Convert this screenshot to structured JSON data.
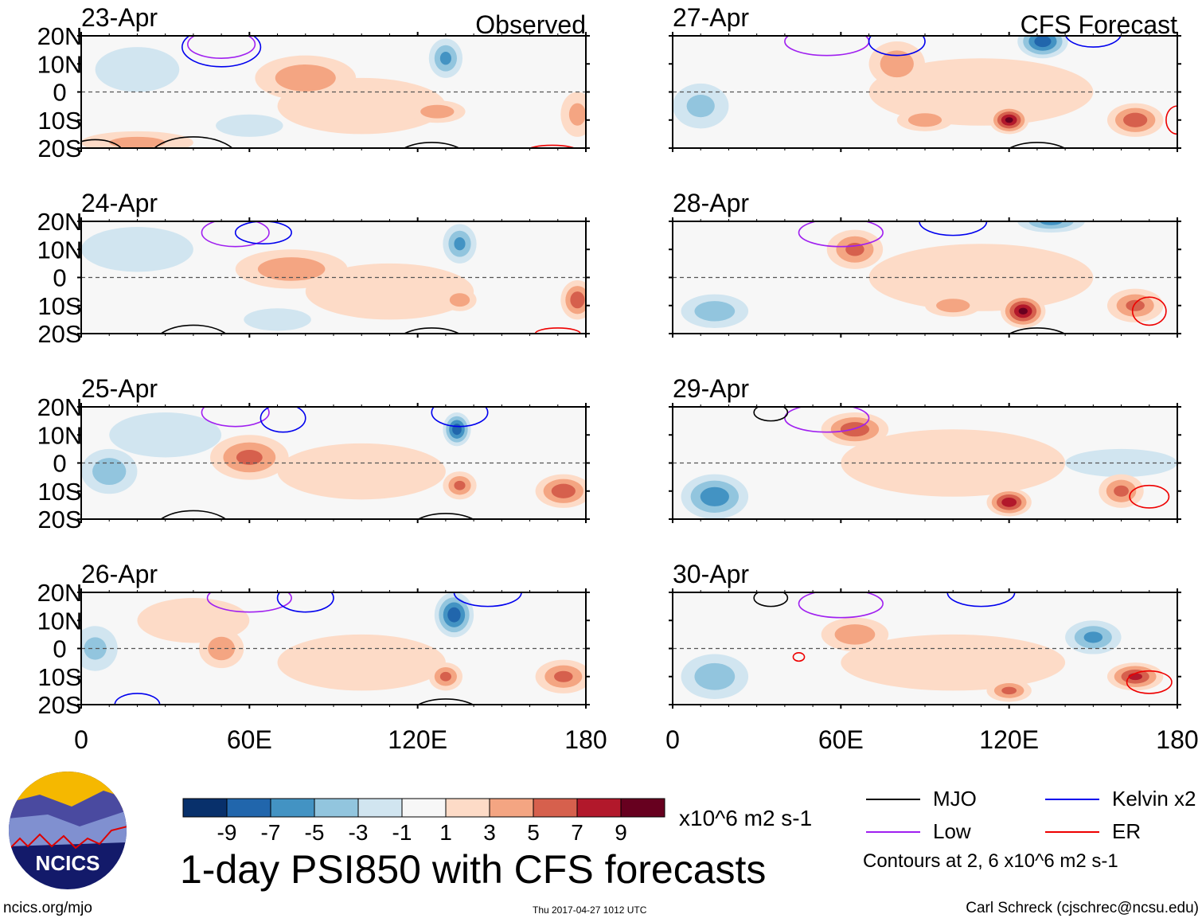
{
  "chart_data": {
    "type": "heatmap",
    "title": "1-day PSI850 with CFS forecasts",
    "units": "x10^6 m2 s-1",
    "xlim": [
      0,
      180
    ],
    "ylim": [
      -20,
      20
    ],
    "x_ticks": [
      "0",
      "60E",
      "120E",
      "180"
    ],
    "x_tick_values": [
      0,
      60,
      120,
      180
    ],
    "y_ticks": [
      "20N",
      "10N",
      "0",
      "10S",
      "20S"
    ],
    "y_tick_values": [
      20,
      10,
      0,
      -10,
      -20
    ],
    "colorbar": {
      "labels": [
        "-9",
        "-7",
        "-5",
        "-3",
        "-1",
        "1",
        "3",
        "5",
        "7",
        "9"
      ],
      "edges": [
        -9,
        -7,
        -5,
        -3,
        -1,
        1,
        3,
        5,
        7,
        9
      ],
      "colors": [
        "#08306b",
        "#2166ac",
        "#4393c3",
        "#92c5de",
        "#d1e5f0",
        "#f7f7f7",
        "#fddbc7",
        "#f4a582",
        "#d6604d",
        "#b2182b",
        "#67001f"
      ]
    },
    "legend": {
      "items": [
        {
          "name": "MJO",
          "color": "#000000"
        },
        {
          "name": "Kelvin x2",
          "color": "#0000ee"
        },
        {
          "name": "Low",
          "color": "#a020f0"
        },
        {
          "name": "ER",
          "color": "#ee0000"
        }
      ],
      "note": "Contours at 2, 6 x10^6 m2 s-1"
    },
    "panels": [
      {
        "date": "23-Apr",
        "tag": "Observed",
        "column": "left",
        "row": 0,
        "features": [
          [
            80,
            5,
            4,
            18,
            8
          ],
          [
            130,
            12,
            -5,
            6,
            7
          ],
          [
            127,
            -7,
            4,
            10,
            4
          ],
          [
            60,
            -12,
            -2,
            12,
            4
          ],
          [
            20,
            8,
            -2,
            15,
            8
          ],
          [
            20,
            -18,
            3,
            20,
            4
          ],
          [
            100,
            -5,
            2,
            30,
            10
          ],
          [
            177,
            -8,
            3,
            6,
            8
          ]
        ],
        "contours": [
          [
            50,
            17,
            12,
            5,
            "#a020f0"
          ],
          [
            50,
            16,
            14,
            7,
            "#0000ee"
          ],
          [
            5,
            -22,
            10,
            5,
            "#000000"
          ],
          [
            40,
            -24,
            16,
            8,
            "#000000"
          ],
          [
            125,
            -24,
            13,
            6,
            "#000000"
          ],
          [
            168,
            -21,
            9,
            2,
            "#ee0000"
          ]
        ]
      },
      {
        "date": "24-Apr",
        "tag": "",
        "column": "left",
        "row": 1,
        "features": [
          [
            75,
            3,
            4,
            20,
            7
          ],
          [
            135,
            12,
            -5,
            6,
            7
          ],
          [
            20,
            10,
            -2,
            20,
            8
          ],
          [
            70,
            -15,
            -2,
            12,
            4
          ],
          [
            177,
            -8,
            6,
            6,
            7
          ],
          [
            135,
            -8,
            4,
            6,
            4
          ],
          [
            110,
            -5,
            2,
            30,
            10
          ]
        ],
        "contours": [
          [
            55,
            16,
            12,
            5,
            "#a020f0"
          ],
          [
            65,
            16,
            10,
            4,
            "#0000ee"
          ],
          [
            40,
            -24,
            14,
            7,
            "#000000"
          ],
          [
            125,
            -24,
            13,
            6,
            "#000000"
          ],
          [
            170,
            -20,
            8,
            2,
            "#ee0000"
          ]
        ]
      },
      {
        "date": "25-Apr",
        "tag": "",
        "column": "left",
        "row": 2,
        "features": [
          [
            60,
            2,
            5,
            14,
            8
          ],
          [
            134,
            12,
            -8,
            5,
            6
          ],
          [
            135,
            -8,
            5,
            6,
            5
          ],
          [
            172,
            -10,
            6,
            10,
            6
          ],
          [
            10,
            -3,
            -4,
            10,
            8
          ],
          [
            100,
            -3,
            2,
            30,
            10
          ],
          [
            30,
            10,
            -2,
            20,
            8
          ]
        ],
        "contours": [
          [
            55,
            18,
            12,
            5,
            "#a020f0"
          ],
          [
            72,
            16,
            8,
            5,
            "#0000ee"
          ],
          [
            135,
            18,
            10,
            5,
            "#0000ee"
          ],
          [
            40,
            -24,
            14,
            7,
            "#000000"
          ],
          [
            130,
            -24,
            13,
            6,
            "#000000"
          ]
        ]
      },
      {
        "date": "26-Apr",
        "tag": "",
        "column": "left",
        "row": 3,
        "features": [
          [
            50,
            0,
            4,
            8,
            7
          ],
          [
            133,
            12,
            -8,
            7,
            8
          ],
          [
            130,
            -10,
            5,
            6,
            5
          ],
          [
            172,
            -10,
            5,
            10,
            6
          ],
          [
            5,
            0,
            -3,
            8,
            8
          ],
          [
            100,
            -5,
            2,
            30,
            10
          ],
          [
            40,
            10,
            2,
            20,
            8
          ]
        ],
        "contours": [
          [
            60,
            18,
            15,
            5,
            "#a020f0"
          ],
          [
            80,
            18,
            10,
            5,
            "#0000ee"
          ],
          [
            145,
            20,
            12,
            5,
            "#0000ee"
          ],
          [
            20,
            -20,
            8,
            4,
            "#0000ee"
          ],
          [
            130,
            -24,
            13,
            6,
            "#000000"
          ]
        ]
      },
      {
        "date": "27-Apr",
        "tag": "CFS Forecast",
        "column": "right",
        "row": 0,
        "features": [
          [
            132,
            18,
            -8,
            9,
            6
          ],
          [
            120,
            -10,
            9,
            7,
            5
          ],
          [
            90,
            -10,
            4,
            10,
            4
          ],
          [
            80,
            10,
            4,
            10,
            8
          ],
          [
            165,
            -10,
            6,
            10,
            6
          ],
          [
            10,
            -5,
            -3,
            10,
            8
          ],
          [
            110,
            0,
            2,
            40,
            12
          ]
        ],
        "contours": [
          [
            55,
            18,
            15,
            5,
            "#a020f0"
          ],
          [
            80,
            18,
            10,
            5,
            "#0000ee"
          ],
          [
            150,
            21,
            10,
            5,
            "#0000ee"
          ],
          [
            180,
            -10,
            4,
            5,
            "#ee0000"
          ],
          [
            130,
            -24,
            13,
            6,
            "#000000"
          ]
        ]
      },
      {
        "date": "28-Apr",
        "tag": "",
        "column": "right",
        "row": 1,
        "features": [
          [
            125,
            -12,
            9,
            8,
            6
          ],
          [
            65,
            10,
            5,
            10,
            7
          ],
          [
            135,
            20,
            -5,
            12,
            4
          ],
          [
            100,
            -10,
            4,
            10,
            4
          ],
          [
            165,
            -10,
            5,
            10,
            6
          ],
          [
            15,
            -12,
            -4,
            12,
            6
          ],
          [
            110,
            0,
            2,
            40,
            12
          ]
        ],
        "contours": [
          [
            60,
            16,
            15,
            5,
            "#a020f0"
          ],
          [
            100,
            20,
            12,
            5,
            "#0000ee"
          ],
          [
            170,
            -12,
            6,
            5,
            "#ee0000"
          ],
          [
            130,
            -24,
            13,
            6,
            "#000000"
          ]
        ]
      },
      {
        "date": "29-Apr",
        "tag": "",
        "column": "right",
        "row": 2,
        "features": [
          [
            120,
            -14,
            8,
            8,
            5
          ],
          [
            65,
            12,
            6,
            12,
            6
          ],
          [
            15,
            -12,
            -6,
            12,
            8
          ],
          [
            160,
            -10,
            5,
            8,
            6
          ],
          [
            160,
            0,
            -2,
            20,
            5
          ],
          [
            100,
            0,
            2,
            40,
            12
          ]
        ],
        "contours": [
          [
            55,
            16,
            15,
            5,
            "#a020f0"
          ],
          [
            35,
            18,
            6,
            3,
            "#000000"
          ],
          [
            170,
            -12,
            7,
            4,
            "#ee0000"
          ],
          [
            110,
            -22,
            8,
            2,
            "#0000ee"
          ]
        ]
      },
      {
        "date": "30-Apr",
        "tag": "",
        "column": "right",
        "row": 3,
        "features": [
          [
            165,
            -10,
            7,
            10,
            5
          ],
          [
            150,
            4,
            -5,
            10,
            6
          ],
          [
            120,
            -15,
            5,
            8,
            4
          ],
          [
            65,
            5,
            4,
            12,
            6
          ],
          [
            15,
            -10,
            -4,
            12,
            8
          ],
          [
            100,
            -5,
            2,
            40,
            10
          ]
        ],
        "contours": [
          [
            60,
            16,
            15,
            5,
            "#a020f0"
          ],
          [
            110,
            20,
            12,
            5,
            "#0000ee"
          ],
          [
            35,
            18,
            6,
            3,
            "#000000"
          ],
          [
            170,
            -12,
            8,
            4,
            "#ee0000"
          ],
          [
            45,
            -3,
            2,
            1.5,
            "#ee0000"
          ]
        ]
      }
    ]
  },
  "footer": {
    "logo_text": "NCICS",
    "site": "ncics.org/mjo",
    "timestamp": "Thu 2017-04-27 1012 UTC",
    "author": "Carl Schreck (cjschrec@ncsu.edu)"
  }
}
